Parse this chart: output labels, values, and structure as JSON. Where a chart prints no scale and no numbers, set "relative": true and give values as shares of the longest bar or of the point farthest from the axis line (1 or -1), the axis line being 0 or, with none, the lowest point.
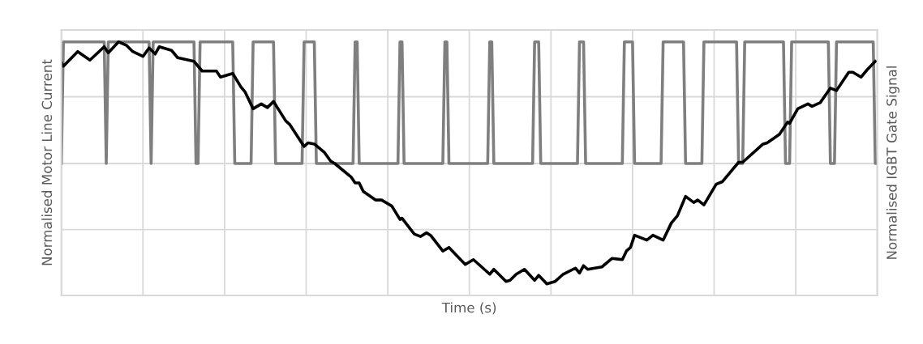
{
  "chart_data": {
    "type": "line",
    "relative": true,
    "xlabel": "Time (s)",
    "ylabel": "Normalised Motor Line Current",
    "y2label": "Normalised IGBT Gate Signal",
    "grid": true,
    "tick_labels": false,
    "marker": "none",
    "line_style": "solid",
    "categories": [
      null,
      null,
      null,
      null,
      null,
      null,
      null,
      null,
      null,
      null,
      null,
      null,
      null,
      null,
      null,
      null,
      null,
      null,
      null,
      null,
      null,
      null,
      null,
      null,
      null,
      null,
      null,
      null,
      null,
      null,
      null,
      null,
      null,
      null,
      null,
      null,
      null,
      null,
      null,
      null,
      null,
      null,
      null,
      null,
      null,
      null,
      null,
      null,
      null,
      null,
      null,
      null,
      null,
      null,
      null,
      null,
      null,
      null,
      null,
      null,
      null,
      null,
      null,
      null,
      null,
      null,
      null,
      null,
      null,
      null,
      null,
      null,
      null,
      null,
      null,
      null,
      null,
      null,
      null,
      null,
      null,
      null,
      null,
      null,
      null,
      null,
      null,
      null,
      null,
      null,
      null,
      null,
      null,
      null,
      null,
      null,
      null,
      null,
      null,
      null,
      null,
      null,
      null,
      null,
      null,
      null,
      null,
      null,
      null,
      null,
      null,
      null,
      null,
      null,
      null,
      null,
      null,
      null,
      null,
      null,
      null,
      null,
      null,
      null,
      null,
      null,
      null,
      null,
      null,
      null,
      null,
      null,
      null,
      null,
      null,
      null,
      null,
      null,
      null,
      null,
      null,
      null,
      null,
      null,
      null,
      null,
      null,
      null,
      null,
      null,
      null,
      null,
      null,
      null,
      null,
      null,
      null,
      null,
      null,
      null,
      null,
      null,
      null,
      null,
      null,
      null,
      null,
      null,
      null,
      null,
      null,
      null,
      null,
      null,
      null,
      null,
      null,
      null,
      null,
      null,
      null,
      null,
      null,
      null,
      null,
      null,
      null,
      null,
      null,
      null,
      null,
      null,
      null,
      null,
      null,
      null,
      null,
      null,
      null,
      null,
      null,
      null,
      null,
      null,
      null,
      null,
      null,
      null,
      null,
      null,
      null,
      null,
      null,
      null,
      null,
      null,
      null,
      null,
      null,
      null,
      null,
      null,
      null,
      null,
      null,
      null,
      null,
      null,
      null,
      null,
      null,
      null,
      null,
      null,
      null,
      null,
      null,
      null,
      null,
      null,
      null,
      null,
      null,
      null,
      null,
      null,
      null,
      null,
      null,
      null,
      null,
      null,
      null,
      null,
      null,
      null,
      null,
      null,
      null,
      null,
      null,
      null,
      null,
      null,
      null,
      null,
      null,
      null,
      null,
      null,
      null,
      null,
      null,
      null,
      null,
      null,
      null,
      null,
      null,
      null,
      null,
      null,
      null,
      null,
      null,
      null,
      null,
      null,
      null,
      null,
      null,
      null,
      null,
      null,
      null,
      null,
      null,
      null,
      null,
      null,
      null,
      null,
      null,
      null,
      null,
      null,
      null,
      null,
      null,
      null,
      null,
      null,
      null,
      null,
      null,
      null,
      null,
      null,
      null,
      null,
      null,
      null,
      null,
      null,
      null,
      null,
      null,
      null,
      null,
      null,
      null,
      null,
      null,
      null,
      null,
      null,
      null,
      null,
      null,
      null,
      null,
      null,
      null,
      null,
      null,
      null,
      null,
      null,
      null,
      null,
      null,
      null,
      null,
      null,
      null,
      null,
      null,
      null,
      null,
      null,
      null,
      null,
      null,
      null,
      null,
      null,
      null,
      null,
      null,
      null,
      null,
      null,
      null,
      null,
      null,
      null,
      null,
      null,
      null,
      null,
      null,
      null,
      null,
      null,
      null,
      null,
      null,
      null,
      null,
      null,
      null,
      null,
      null,
      null,
      null,
      null,
      null,
      null,
      null,
      null,
      null
    ],
    "series": [
      {
        "color": "#7f7f7f",
        "values": [
          0,
          1,
          1,
          1,
          1,
          1,
          1,
          1,
          1,
          1,
          1,
          1,
          1,
          1,
          1,
          1,
          1,
          1,
          1,
          1,
          1,
          1,
          0,
          1,
          1,
          1,
          1,
          1,
          1,
          1,
          1,
          1,
          1,
          1,
          1,
          1,
          1,
          1,
          1,
          1,
          1,
          1,
          1,
          1,
          0,
          1,
          1,
          1,
          1,
          1,
          1,
          1,
          1,
          1,
          1,
          1,
          1,
          1,
          1,
          1,
          1,
          1,
          1,
          1,
          1,
          1,
          0,
          0,
          1,
          1,
          1,
          1,
          1,
          1,
          1,
          1,
          1,
          1,
          1,
          1,
          1,
          1,
          1,
          1,
          1,
          0,
          0,
          0,
          0,
          0,
          0,
          0,
          0,
          0,
          1,
          1,
          1,
          1,
          1,
          1,
          1,
          1,
          1,
          1,
          1,
          0,
          0,
          0,
          0,
          0,
          0,
          0,
          0,
          0,
          0,
          0,
          0,
          0,
          0,
          1,
          1,
          1,
          1,
          1,
          1,
          0,
          0,
          0,
          0,
          0,
          0,
          0,
          0,
          0,
          0,
          0,
          0,
          0,
          0,
          0,
          0,
          0,
          0,
          0,
          1,
          1,
          0,
          0,
          0,
          0,
          0,
          0,
          0,
          0,
          0,
          0,
          0,
          0,
          0,
          0,
          0,
          0,
          0,
          0,
          0,
          0,
          1,
          1,
          0,
          0,
          0,
          0,
          0,
          0,
          0,
          0,
          0,
          0,
          0,
          0,
          0,
          0,
          0,
          0,
          0,
          0,
          0,
          0,
          1,
          1,
          0,
          0,
          0,
          0,
          0,
          0,
          0,
          0,
          0,
          0,
          0,
          0,
          0,
          0,
          0,
          0,
          0,
          0,
          0,
          0,
          1,
          1,
          0,
          0,
          0,
          0,
          0,
          0,
          0,
          0,
          0,
          0,
          0,
          0,
          0,
          0,
          0,
          0,
          0,
          0,
          0,
          0,
          1,
          1,
          1,
          0,
          0,
          0,
          0,
          0,
          0,
          0,
          0,
          0,
          0,
          0,
          0,
          0,
          0,
          0,
          0,
          0,
          0,
          0,
          1,
          1,
          1,
          0,
          0,
          0,
          0,
          0,
          0,
          0,
          0,
          0,
          0,
          0,
          0,
          0,
          0,
          0,
          0,
          0,
          0,
          0,
          1,
          1,
          1,
          1,
          1,
          0,
          0,
          0,
          0,
          0,
          0,
          0,
          0,
          0,
          0,
          0,
          0,
          0,
          0,
          1,
          1,
          1,
          1,
          1,
          1,
          1,
          1,
          1,
          1,
          1,
          0,
          0,
          0,
          0,
          0,
          0,
          0,
          0,
          0,
          1,
          1,
          1,
          1,
          1,
          1,
          1,
          1,
          1,
          1,
          1,
          1,
          1,
          1,
          1,
          1,
          1,
          0,
          0,
          0,
          1,
          1,
          1,
          1,
          1,
          1,
          1,
          1,
          1,
          1,
          1,
          1,
          1,
          1,
          1,
          1,
          1,
          1,
          1,
          1,
          0,
          0,
          0,
          1,
          1,
          1,
          1,
          1,
          1,
          1,
          1,
          1,
          1,
          1,
          1,
          1,
          1,
          1,
          1,
          1,
          1,
          1,
          0,
          0,
          0,
          1,
          1,
          1,
          1,
          1,
          1,
          1,
          1,
          1,
          1,
          1,
          1,
          1,
          1,
          1,
          1,
          1,
          1,
          1,
          0,
          0
        ]
      },
      {
        "color": "#000000",
        "values": [
          0.83,
          0.8,
          null,
          null,
          null,
          null,
          null,
          null,
          0.92,
          null,
          null,
          null,
          null,
          null,
          0.85,
          null,
          null,
          null,
          null,
          null,
          null,
          0.96,
          null,
          0.91,
          null,
          null,
          null,
          null,
          1.0,
          null,
          null,
          null,
          0.97,
          null,
          null,
          0.92,
          null,
          null,
          null,
          null,
          0.88,
          null,
          null,
          0.95,
          null,
          null,
          0.9,
          null,
          0.96,
          null,
          null,
          null,
          null,
          null,
          0.93,
          null,
          null,
          0.87,
          null,
          null,
          null,
          null,
          null,
          null,
          null,
          0.84,
          null,
          null,
          null,
          0.76,
          null,
          null,
          null,
          null,
          null,
          null,
          0.76,
          null,
          0.71,
          null,
          null,
          null,
          null,
          null,
          0.74,
          null,
          null,
          null,
          0.63,
          null,
          0.59,
          null,
          null,
          null,
          0.45,
          null,
          null,
          null,
          0.49,
          null,
          null,
          0.46,
          null,
          null,
          0.51,
          null,
          null,
          null,
          null,
          null,
          0.35,
          null,
          0.32,
          null,
          null,
          null,
          null,
          null,
          null,
          0.14,
          null,
          0.17,
          null,
          null,
          0.16,
          null,
          null,
          null,
          null,
          0.09,
          null,
          null,
          0.02,
          null,
          0.0,
          null,
          null,
          null,
          null,
          null,
          null,
          null,
          -0.11,
          null,
          -0.16,
          null,
          -0.16,
          null,
          -0.23,
          null,
          null,
          null,
          null,
          null,
          -0.3,
          null,
          null,
          -0.3,
          null,
          null,
          null,
          null,
          -0.35,
          null,
          null,
          null,
          -0.46,
          -0.45,
          null,
          null,
          null,
          null,
          null,
          -0.58,
          null,
          null,
          -0.6,
          null,
          null,
          -0.57,
          null,
          -0.59,
          null,
          null,
          null,
          null,
          null,
          -0.72,
          null,
          null,
          -0.69,
          null,
          null,
          null,
          null,
          null,
          null,
          null,
          -0.83,
          null,
          null,
          null,
          -0.79,
          null,
          null,
          null,
          null,
          null,
          null,
          null,
          -0.91,
          null,
          -0.87,
          null,
          null,
          null,
          null,
          null,
          -0.97,
          null,
          -0.96,
          null,
          null,
          -0.91,
          null,
          null,
          null,
          -0.87,
          null,
          null,
          null,
          null,
          -0.96,
          null,
          -0.92,
          null,
          null,
          null,
          -0.99,
          null,
          null,
          null,
          -0.97,
          null,
          null,
          null,
          -0.91,
          null,
          null,
          null,
          null,
          null,
          -0.86,
          null,
          -0.9,
          null,
          -0.84,
          null,
          -0.87,
          null,
          null,
          null,
          null,
          null,
          null,
          -0.85,
          null,
          null,
          null,
          null,
          -0.78,
          null,
          null,
          null,
          null,
          -0.79,
          null,
          -0.72,
          null,
          -0.69,
          null,
          -0.59,
          null,
          null,
          null,
          null,
          null,
          -0.63,
          null,
          null,
          -0.59,
          null,
          null,
          null,
          null,
          -0.63,
          null,
          null,
          null,
          -0.49,
          null,
          null,
          -0.43,
          null,
          null,
          null,
          -0.27,
          null,
          null,
          null,
          -0.32,
          null,
          -0.3,
          null,
          null,
          -0.34,
          null,
          null,
          null,
          null,
          null,
          -0.17,
          null,
          null,
          -0.15,
          null,
          null,
          null,
          null,
          null,
          null,
          null,
          0.01,
          null,
          0.01,
          null,
          null,
          null,
          null,
          null,
          null,
          null,
          null,
          null,
          0.16,
          null,
          0.17,
          null,
          null,
          null,
          null,
          null,
          0.24,
          null,
          null,
          null,
          0.34,
          0.33,
          null,
          null,
          null,
          0.45,
          null,
          null,
          null,
          null,
          0.49,
          null,
          0.47,
          null,
          null,
          null,
          0.5,
          null,
          null,
          null,
          null,
          0.62,
          null,
          null,
          0.6,
          null,
          null,
          null,
          null,
          null,
          0.75,
          null,
          0.75,
          null,
          null,
          null,
          0.71,
          null,
          null,
          0.77,
          null,
          null,
          null,
          0.84,
          null
        ]
      }
    ]
  }
}
